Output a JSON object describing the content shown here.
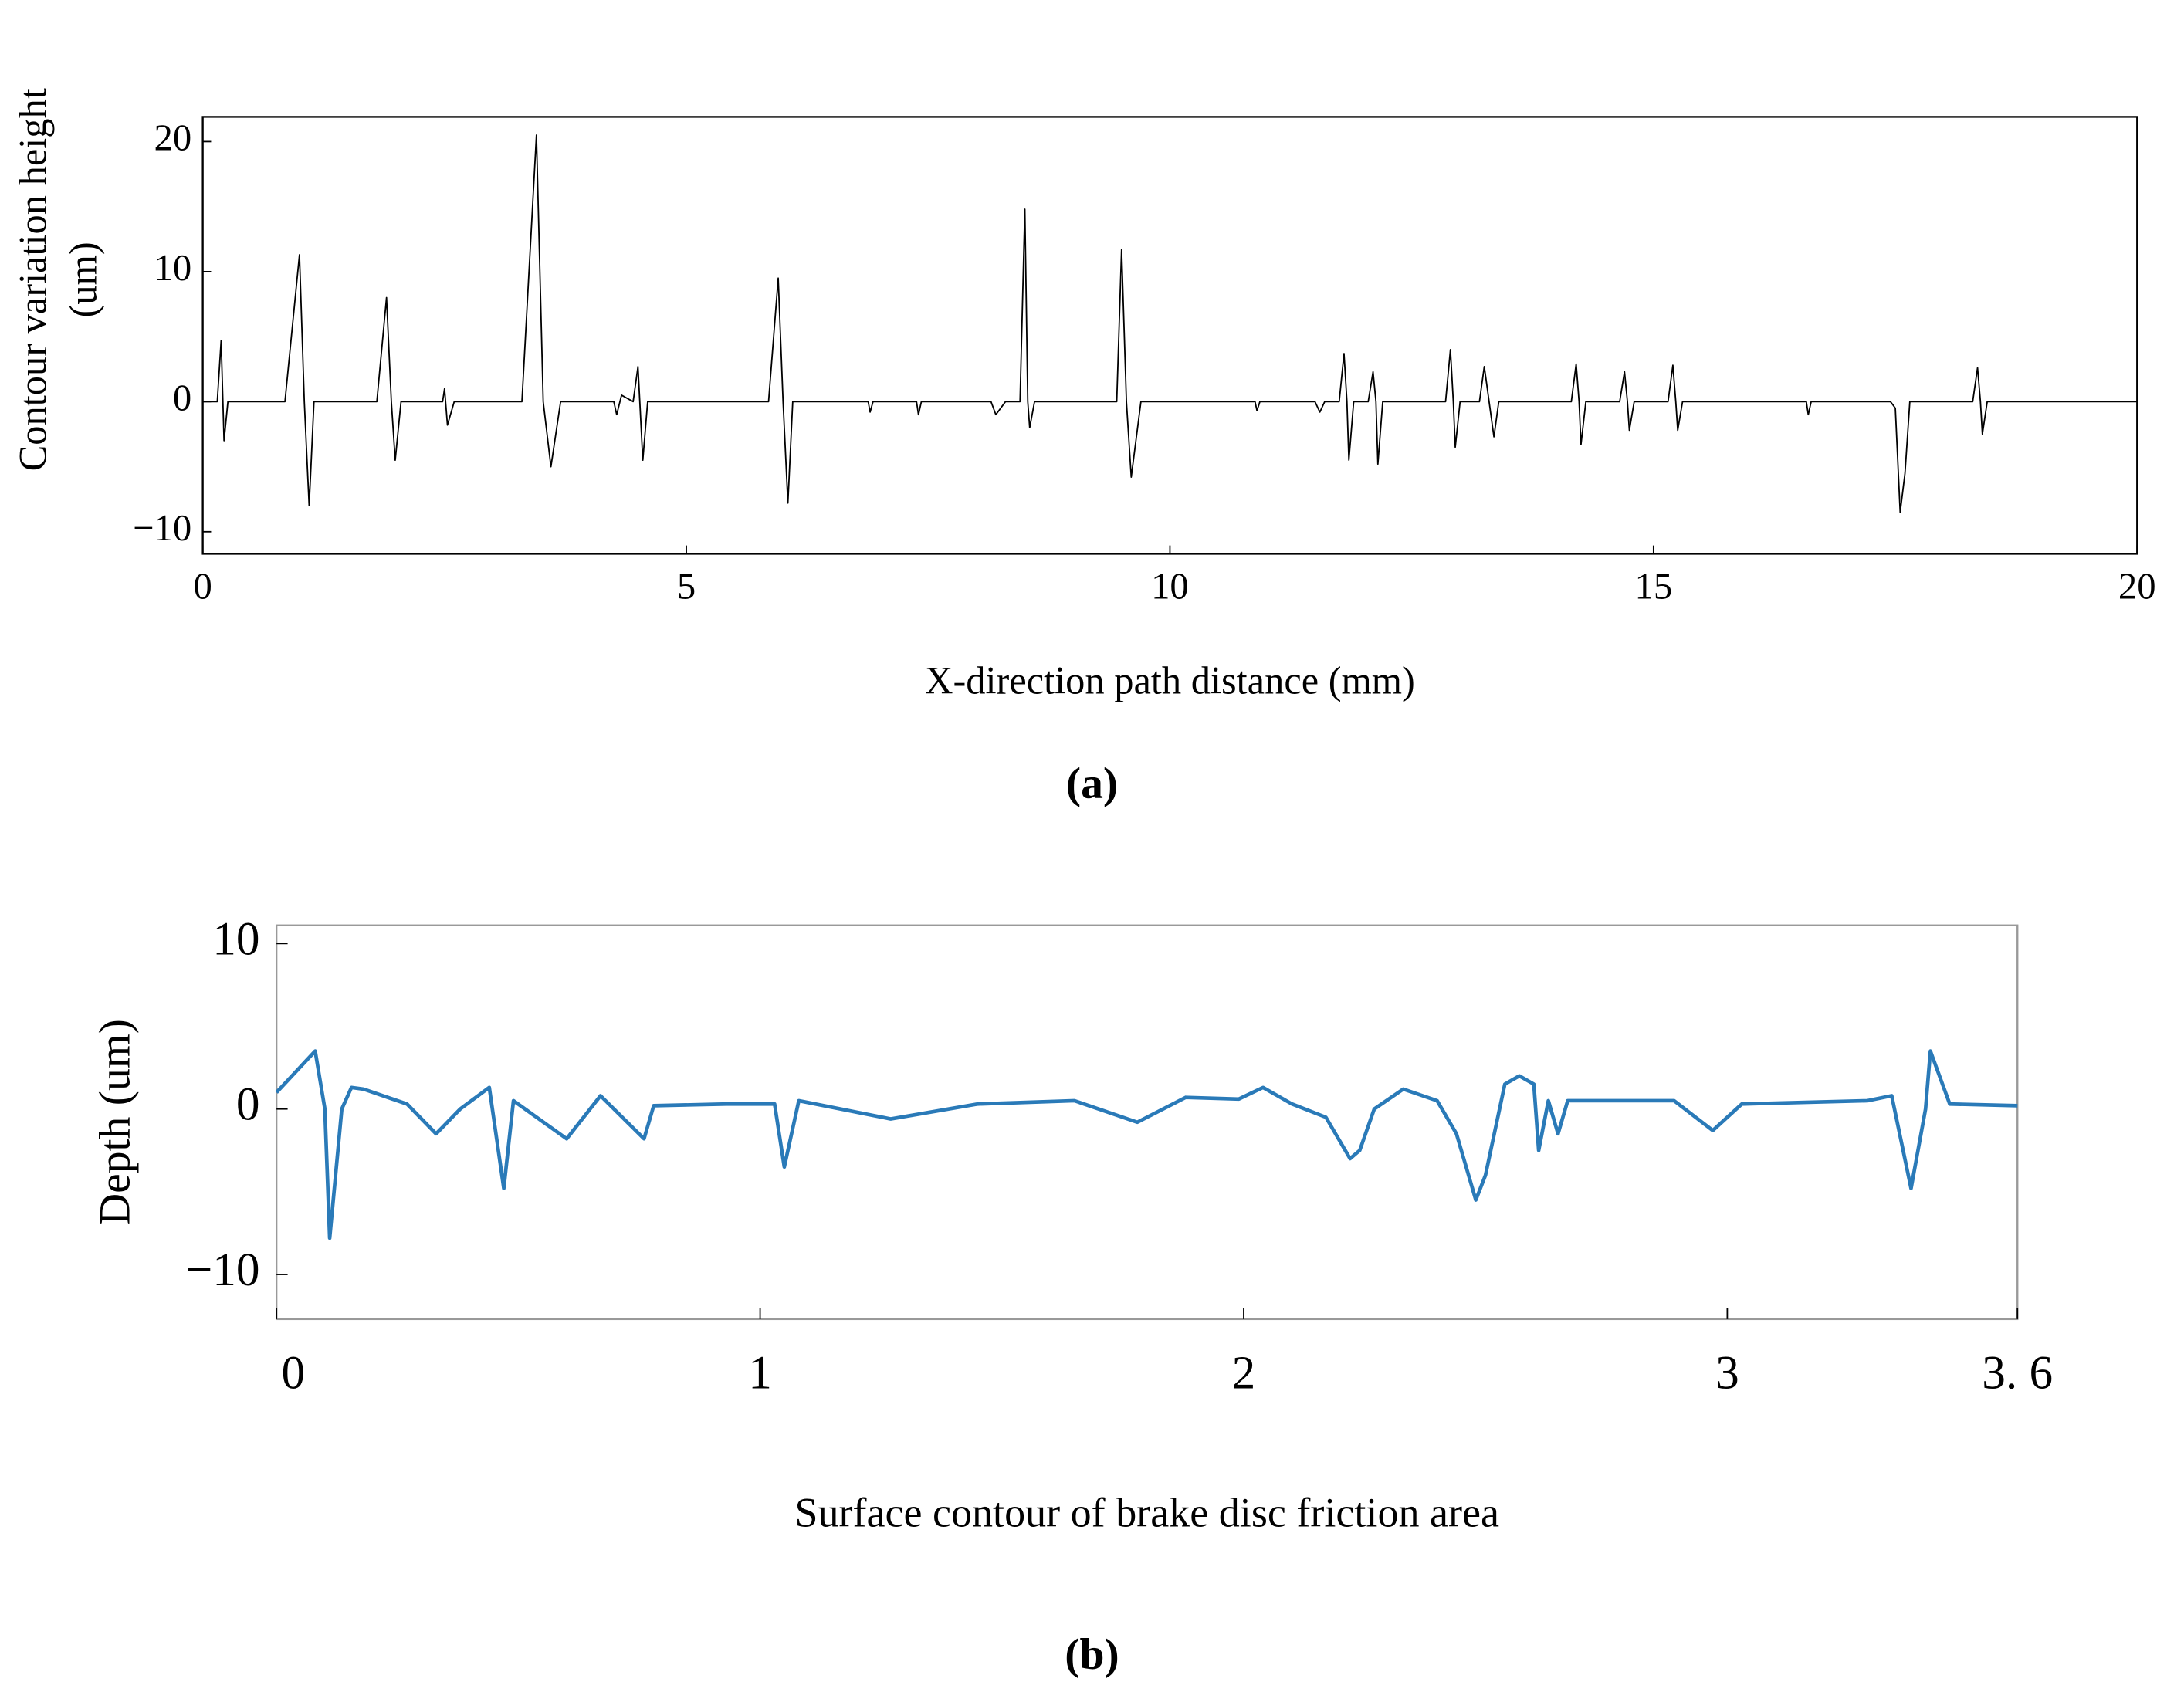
{
  "chart_data": [
    {
      "type": "line",
      "panel_label": "(a)",
      "xlabel": "X-direction path distance (mm)",
      "ylabel": [
        "Contour variation height",
        "(um)"
      ],
      "xlim": [
        0,
        20
      ],
      "xticks": [
        0,
        5,
        10,
        15,
        20
      ],
      "ylim": [
        -11.7,
        21.9
      ],
      "yticks": [
        {
          "value": -10,
          "label": "−10"
        },
        0,
        10,
        20
      ],
      "series": [
        {
          "color": "#000000",
          "x": [
            0,
            0.15,
            0.19,
            0.22,
            0.26,
            0.85,
            1.0,
            1.05,
            1.1,
            1.15,
            1.8,
            1.9,
            1.95,
            1.99,
            2.05,
            2.48,
            2.5,
            2.53,
            2.6,
            3.3,
            3.45,
            3.52,
            3.6,
            3.7,
            4.25,
            4.28,
            4.33,
            4.45,
            4.5,
            4.55,
            4.6,
            5.85,
            5.95,
            6.0,
            6.05,
            6.1,
            6.88,
            6.9,
            6.93,
            7.38,
            7.4,
            7.43,
            8.15,
            8.2,
            8.3,
            8.45,
            8.5,
            8.53,
            8.55,
            8.6,
            9.45,
            9.5,
            9.55,
            9.6,
            9.7,
            9.75,
            10.88,
            10.9,
            10.93,
            11.5,
            11.55,
            11.6,
            11.75,
            11.8,
            11.83,
            11.85,
            11.9,
            12.05,
            12.1,
            12.13,
            12.15,
            12.2,
            12.85,
            12.9,
            12.93,
            12.95,
            13.0,
            13.2,
            13.25,
            13.3,
            13.35,
            13.4,
            14.15,
            14.2,
            14.23,
            14.25,
            14.3,
            14.65,
            14.7,
            14.73,
            14.75,
            14.8,
            15.15,
            15.2,
            15.23,
            15.25,
            15.3,
            16.58,
            16.6,
            16.63,
            17.45,
            17.5,
            17.55,
            17.6,
            17.65,
            17.7,
            18.3,
            18.35,
            18.38,
            18.4,
            18.45,
            20
          ],
          "values": [
            0,
            0,
            4.7,
            -3,
            0,
            0,
            11.3,
            0,
            -8,
            0,
            0,
            8,
            0,
            -4.5,
            0,
            0,
            1,
            -1.8,
            0,
            0,
            20.5,
            0,
            -5,
            0,
            0,
            -1,
            0.5,
            0,
            2.7,
            -4.5,
            0,
            0,
            9.5,
            0,
            -7.8,
            0,
            0,
            -0.8,
            0,
            0,
            -1,
            0,
            0,
            -1,
            0,
            0,
            14.8,
            0,
            -2,
            0,
            0,
            11.7,
            0,
            -5.8,
            0,
            0,
            0,
            -0.7,
            0,
            0,
            -0.8,
            0,
            0,
            3.7,
            0,
            -4.5,
            0,
            0,
            2.3,
            0,
            -4.8,
            0,
            0,
            4,
            0,
            -3.5,
            0,
            0,
            2.7,
            0,
            -2.7,
            0,
            0,
            2.9,
            0,
            -3.3,
            0,
            0,
            2.3,
            0,
            -2.2,
            0,
            0,
            2.8,
            0,
            -2.2,
            0,
            0,
            -1,
            0,
            0,
            -0.5,
            -8.5,
            -5.5,
            0,
            0,
            0,
            2.6,
            0,
            -2.5,
            0,
            0
          ]
        }
      ]
    },
    {
      "type": "line",
      "panel_label": "(b)",
      "xlabel": "Surface contour of brake disc friction area",
      "ylabel": "Depth (um)",
      "xlim": [
        0,
        3.6
      ],
      "xticks": [
        0,
        1,
        2,
        3,
        {
          "value": 3.6,
          "label": "3. 6"
        }
      ],
      "ylim": [
        -12.7,
        11.1
      ],
      "yticks": [
        {
          "value": -10,
          "label": "−10"
        },
        0,
        10
      ],
      "series": [
        {
          "color": "#2a7ab8",
          "x": [
            0,
            0.08,
            0.1,
            0.11,
            0.135,
            0.155,
            0.18,
            0.27,
            0.33,
            0.38,
            0.44,
            0.47,
            0.49,
            0.6,
            0.67,
            0.76,
            0.78,
            0.93,
            1.03,
            1.05,
            1.08,
            1.27,
            1.45,
            1.65,
            1.78,
            1.88,
            1.99,
            2.04,
            2.1,
            2.17,
            2.22,
            2.24,
            2.27,
            2.33,
            2.4,
            2.44,
            2.48,
            2.5,
            2.54,
            2.57,
            2.6,
            2.61,
            2.63,
            2.65,
            2.67,
            2.89,
            2.97,
            3.03,
            3.29,
            3.34,
            3.38,
            3.41,
            3.42,
            3.46,
            3.6
          ],
          "values": [
            1,
            3.5,
            0,
            -7.8,
            0,
            1.3,
            1.2,
            0.3,
            -1.5,
            0,
            1.3,
            -4.8,
            0.5,
            -1.8,
            0.8,
            -1.8,
            0.2,
            0.3,
            0.3,
            -3.5,
            0.5,
            -0.6,
            0.3,
            0.5,
            -0.8,
            0.7,
            0.6,
            1.3,
            0.3,
            -0.5,
            -3,
            -2.5,
            0,
            1.2,
            0.5,
            -1.5,
            -5.5,
            -4,
            1.5,
            2,
            1.5,
            -2.5,
            0.5,
            -1.5,
            0.5,
            0.5,
            -1.3,
            0.3,
            0.5,
            0.8,
            -4.8,
            0,
            3.5,
            0.3,
            0.2
          ]
        }
      ]
    }
  ]
}
